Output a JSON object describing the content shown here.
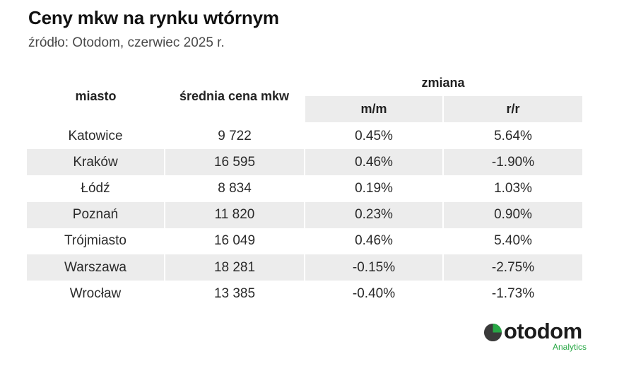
{
  "title": "Ceny mkw na rynku wtórnym",
  "subtitle": "źródło: Otodom, czerwiec 2025 r.",
  "table": {
    "headers": {
      "city": "miasto",
      "avg_price": "średnia cena mkw",
      "change": "zmiana",
      "mm": "m/m",
      "rr": "r/r"
    },
    "rows": [
      {
        "city": "Katowice",
        "price": "9 722",
        "mm": "0.45%",
        "rr": "5.64%"
      },
      {
        "city": "Kraków",
        "price": "16 595",
        "mm": "0.46%",
        "rr": "-1.90%"
      },
      {
        "city": "Łódź",
        "price": "8 834",
        "mm": "0.19%",
        "rr": "1.03%"
      },
      {
        "city": "Poznań",
        "price": "11 820",
        "mm": "0.23%",
        "rr": "0.90%"
      },
      {
        "city": "Trójmiasto",
        "price": "16 049",
        "mm": "0.46%",
        "rr": "5.40%"
      },
      {
        "city": "Warszawa",
        "price": "18 281",
        "mm": "-0.15%",
        "rr": "-2.75%"
      },
      {
        "city": "Wrocław",
        "price": "13 385",
        "mm": "-0.40%",
        "rr": "-1.73%"
      }
    ]
  },
  "logo": {
    "name": "otodom",
    "tagline": "Analytics",
    "accent_color": "#28a745",
    "icon": "otodom-logo-icon"
  }
}
